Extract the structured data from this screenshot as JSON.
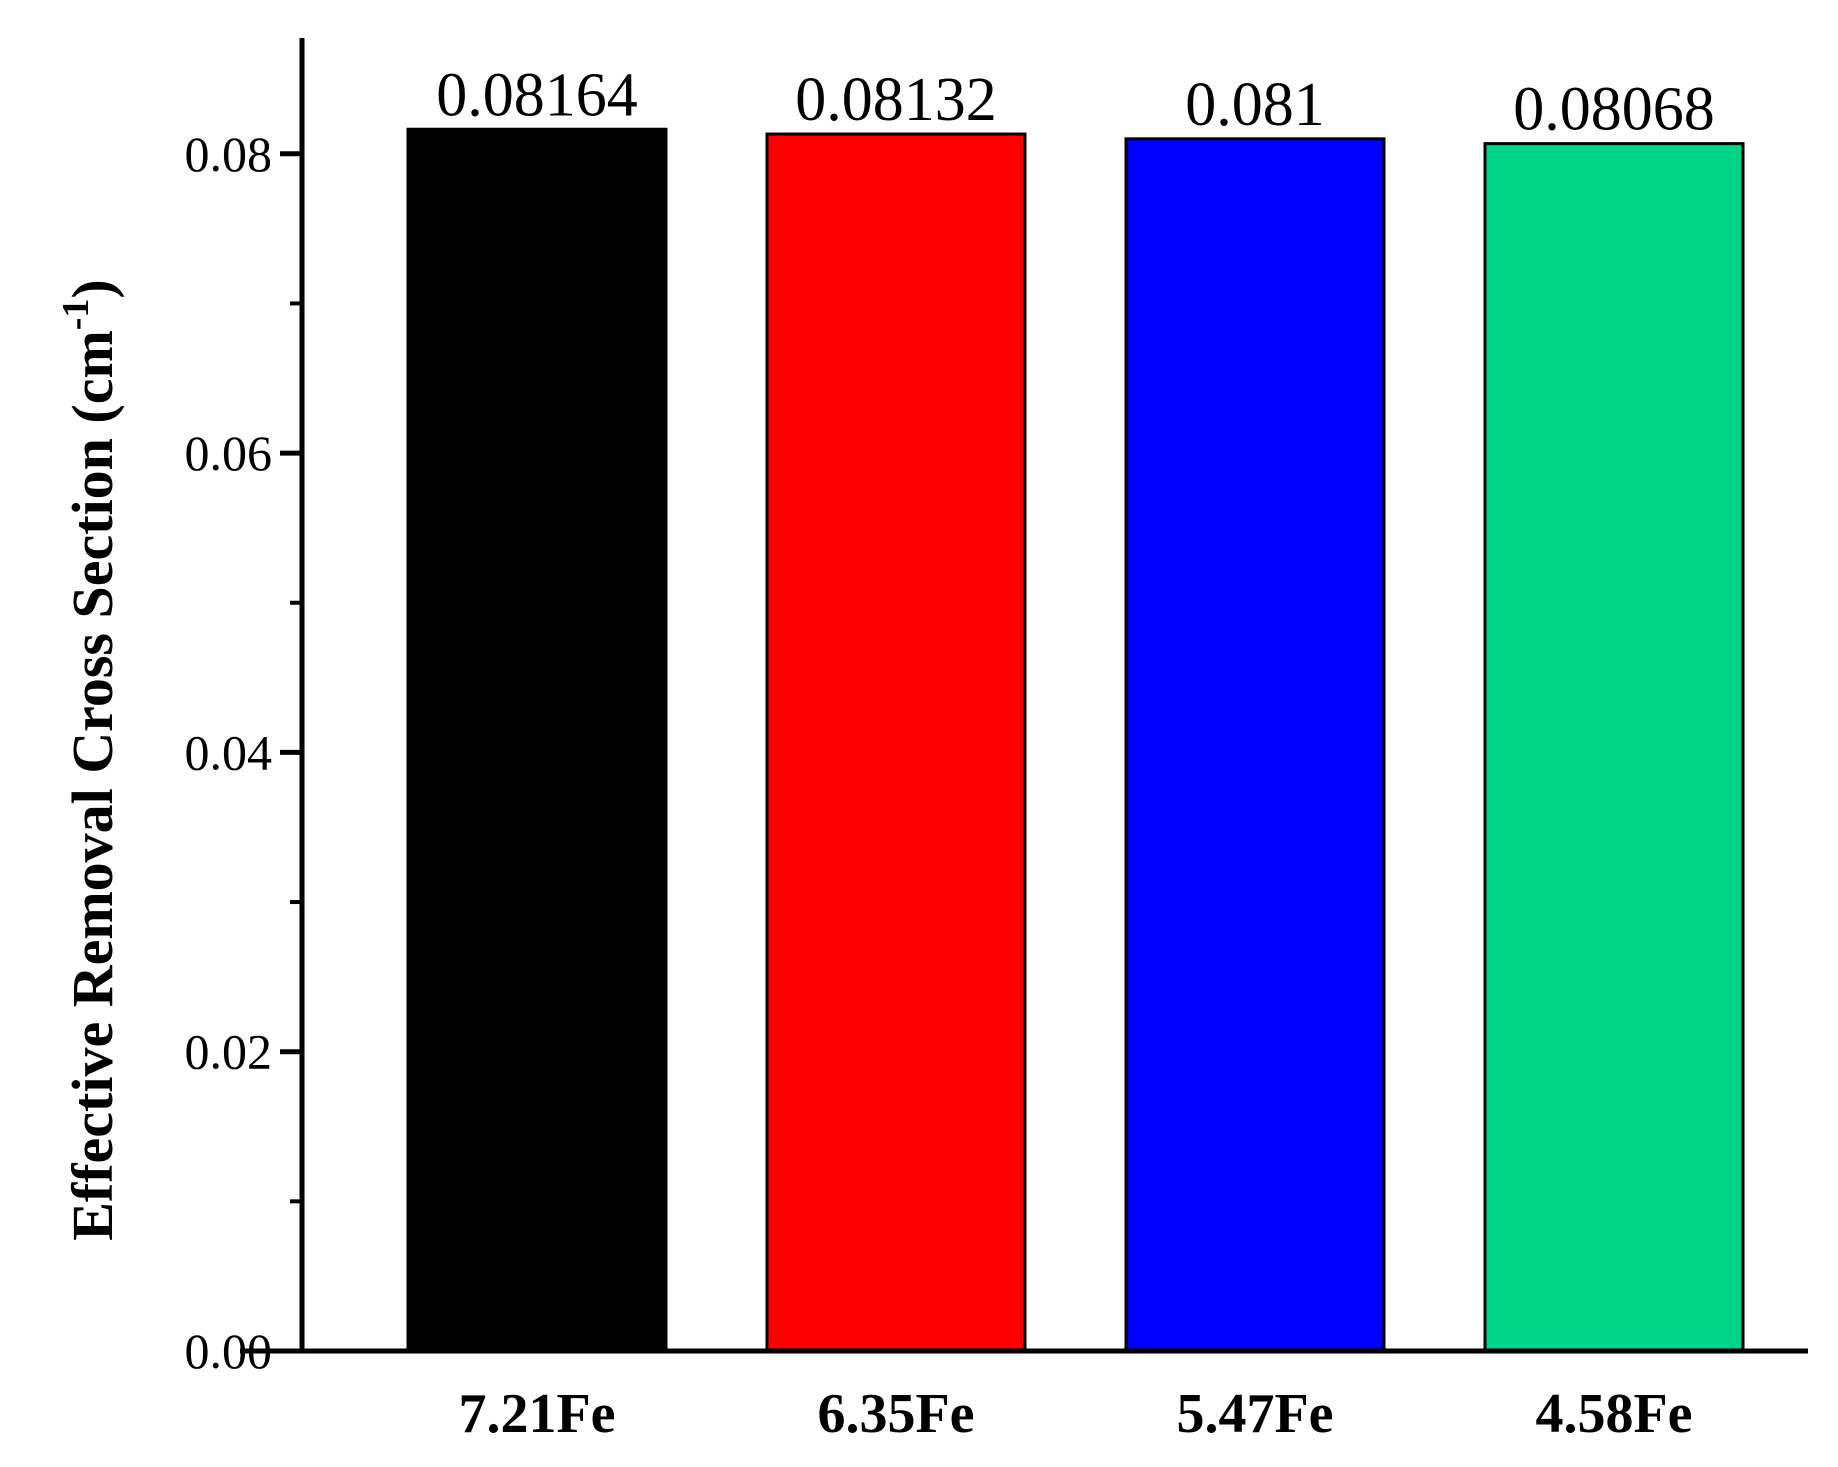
{
  "chart_data": {
    "type": "bar",
    "title": "",
    "xlabel": "",
    "ylabel": "Effective Removal Cross Section (cm",
    "ylabel_superscript": "-1",
    "ylabel_suffix": ")",
    "categories": [
      "7.21Fe",
      "6.35Fe",
      "5.47Fe",
      "4.58Fe"
    ],
    "values": [
      0.08164,
      0.08132,
      0.081,
      0.08068
    ],
    "data_labels": [
      "0.08164",
      "0.08132",
      "0.081",
      "0.08068"
    ],
    "bar_colors": [
      "#000000",
      "#ff0000",
      "#0000ff",
      "#00d38a"
    ],
    "ylim": [
      0,
      0.088
    ],
    "yticks": [
      0.0,
      0.02,
      0.04,
      0.06,
      0.08
    ],
    "ytick_labels": [
      "0.00",
      "0.02",
      "0.04",
      "0.06",
      "0.08"
    ],
    "grid": false,
    "legend": "none"
  }
}
